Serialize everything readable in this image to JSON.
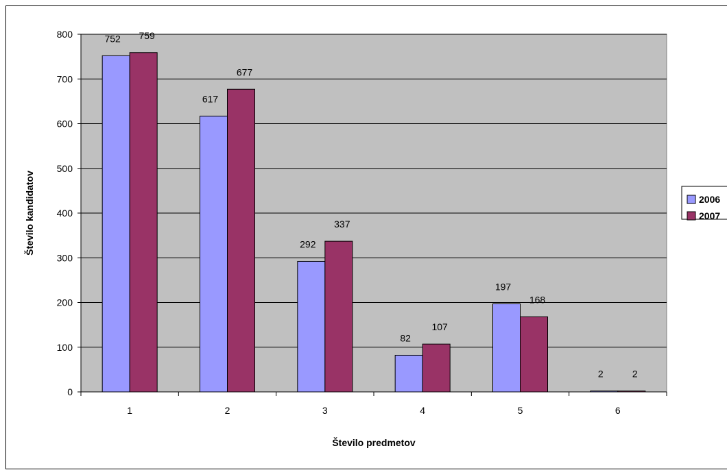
{
  "chart_data": {
    "type": "bar",
    "categories": [
      "1",
      "2",
      "3",
      "4",
      "5",
      "6"
    ],
    "series": [
      {
        "name": "2006",
        "values": [
          752,
          617,
          292,
          82,
          197,
          2
        ],
        "color": "#9999ff"
      },
      {
        "name": "2007",
        "values": [
          759,
          677,
          337,
          107,
          168,
          2
        ],
        "color": "#993366"
      }
    ],
    "xlabel": "Število predmetov",
    "ylabel": "Število kandidatov",
    "ylim": [
      0,
      800
    ],
    "yticks": [
      0,
      100,
      200,
      300,
      400,
      500,
      600,
      700,
      800
    ],
    "plot_background": "#c0c0c0",
    "grid": true,
    "legend_position": "right"
  }
}
